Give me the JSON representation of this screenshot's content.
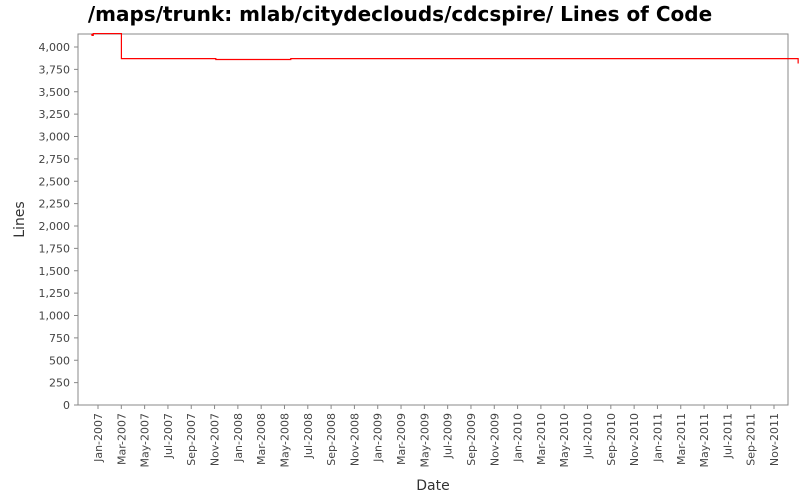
{
  "chart_data": {
    "type": "line",
    "title": "/maps/trunk: mlab/citydeclouds/cdcspire/ Lines of Code",
    "xlabel": "Date",
    "ylabel": "Lines",
    "ylim": [
      0,
      4150
    ],
    "yticks": [
      0,
      250,
      500,
      750,
      1000,
      1250,
      1500,
      1750,
      2000,
      2250,
      2500,
      2750,
      3000,
      3250,
      3500,
      3750,
      4000
    ],
    "ytick_labels": [
      "0",
      "250",
      "500",
      "750",
      "1,000",
      "1,250",
      "1,500",
      "1,750",
      "2,000",
      "2,250",
      "2,500",
      "2,750",
      "3,000",
      "3,250",
      "3,500",
      "3,750",
      "4,000"
    ],
    "xtick_labels": [
      "Jan-2007",
      "Mar-2007",
      "May-2007",
      "Jul-2007",
      "Sep-2007",
      "Nov-2007",
      "Jan-2008",
      "Mar-2008",
      "May-2008",
      "Jul-2008",
      "Sep-2008",
      "Nov-2008",
      "Jan-2009",
      "Mar-2009",
      "May-2009",
      "Jul-2009",
      "Sep-2009",
      "Nov-2009",
      "Jan-2010",
      "Mar-2010",
      "May-2010",
      "Jul-2010",
      "Sep-2010",
      "Nov-2010",
      "Jan-2011",
      "Mar-2011",
      "May-2011",
      "Jul-2011",
      "Sep-2011",
      "Nov-2011"
    ],
    "series": [
      {
        "color": "#ff0000",
        "step": true,
        "points": [
          {
            "x": "2006-12-15",
            "y": 4140
          },
          {
            "x": "2006-12-17",
            "y": 4130
          },
          {
            "x": "2006-12-20",
            "y": 4150
          },
          {
            "x": "2007-03-01",
            "y": 3870
          },
          {
            "x": "2007-10-25",
            "y": 3860
          },
          {
            "x": "2008-05-01",
            "y": 3870
          },
          {
            "x": "2011-11-01",
            "y": 3815
          }
        ]
      }
    ],
    "grid": false
  }
}
